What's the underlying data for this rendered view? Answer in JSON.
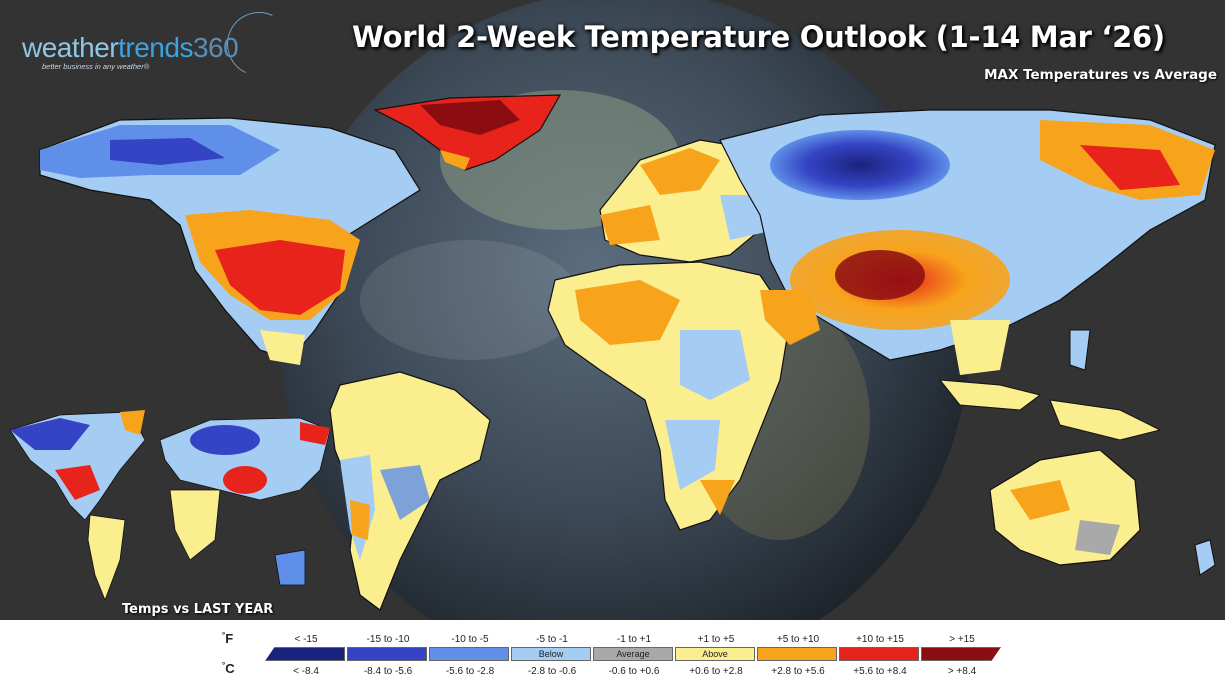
{
  "header": {
    "title": "World 2-Week Temperature Outlook (1-14 Mar ‘26)",
    "subtitle": "MAX Temperatures vs Average"
  },
  "logo": {
    "part1": "weather",
    "part2": "trends",
    "part3": "360",
    "tagline": "better business in any weather®"
  },
  "inset": {
    "label": "Temps vs LAST YEAR"
  },
  "legend": {
    "unit_f": "F",
    "unit_c": "C",
    "degree": "°",
    "bins": [
      {
        "f": "< -15",
        "c": "< -8.4",
        "color": "#1a237e",
        "tag": ""
      },
      {
        "f": "-15 to -10",
        "c": "-8.4 to -5.6",
        "color": "#3544c4",
        "tag": ""
      },
      {
        "f": "-10 to -5",
        "c": "-5.6 to -2.8",
        "color": "#5f8fe8",
        "tag": ""
      },
      {
        "f": "-5 to -1",
        "c": "-2.8 to -0.6",
        "color": "#a5ccf3",
        "tag": "Below"
      },
      {
        "f": "-1 to +1",
        "c": "-0.6 to +0.6",
        "color": "#a9a9a9",
        "tag": "Average"
      },
      {
        "f": "+1 to +5",
        "c": "+0.6 to +2.8",
        "color": "#fbee8f",
        "tag": "Above"
      },
      {
        "f": "+5 to +10",
        "c": "+2.8 to +5.6",
        "color": "#f7a31c",
        "tag": ""
      },
      {
        "f": "+10 to +15",
        "c": "+5.6 to +8.4",
        "color": "#e8231b",
        "tag": ""
      },
      {
        "f": "> +15",
        "c": "> +8.4",
        "color": "#8b0d12",
        "tag": ""
      }
    ]
  }
}
